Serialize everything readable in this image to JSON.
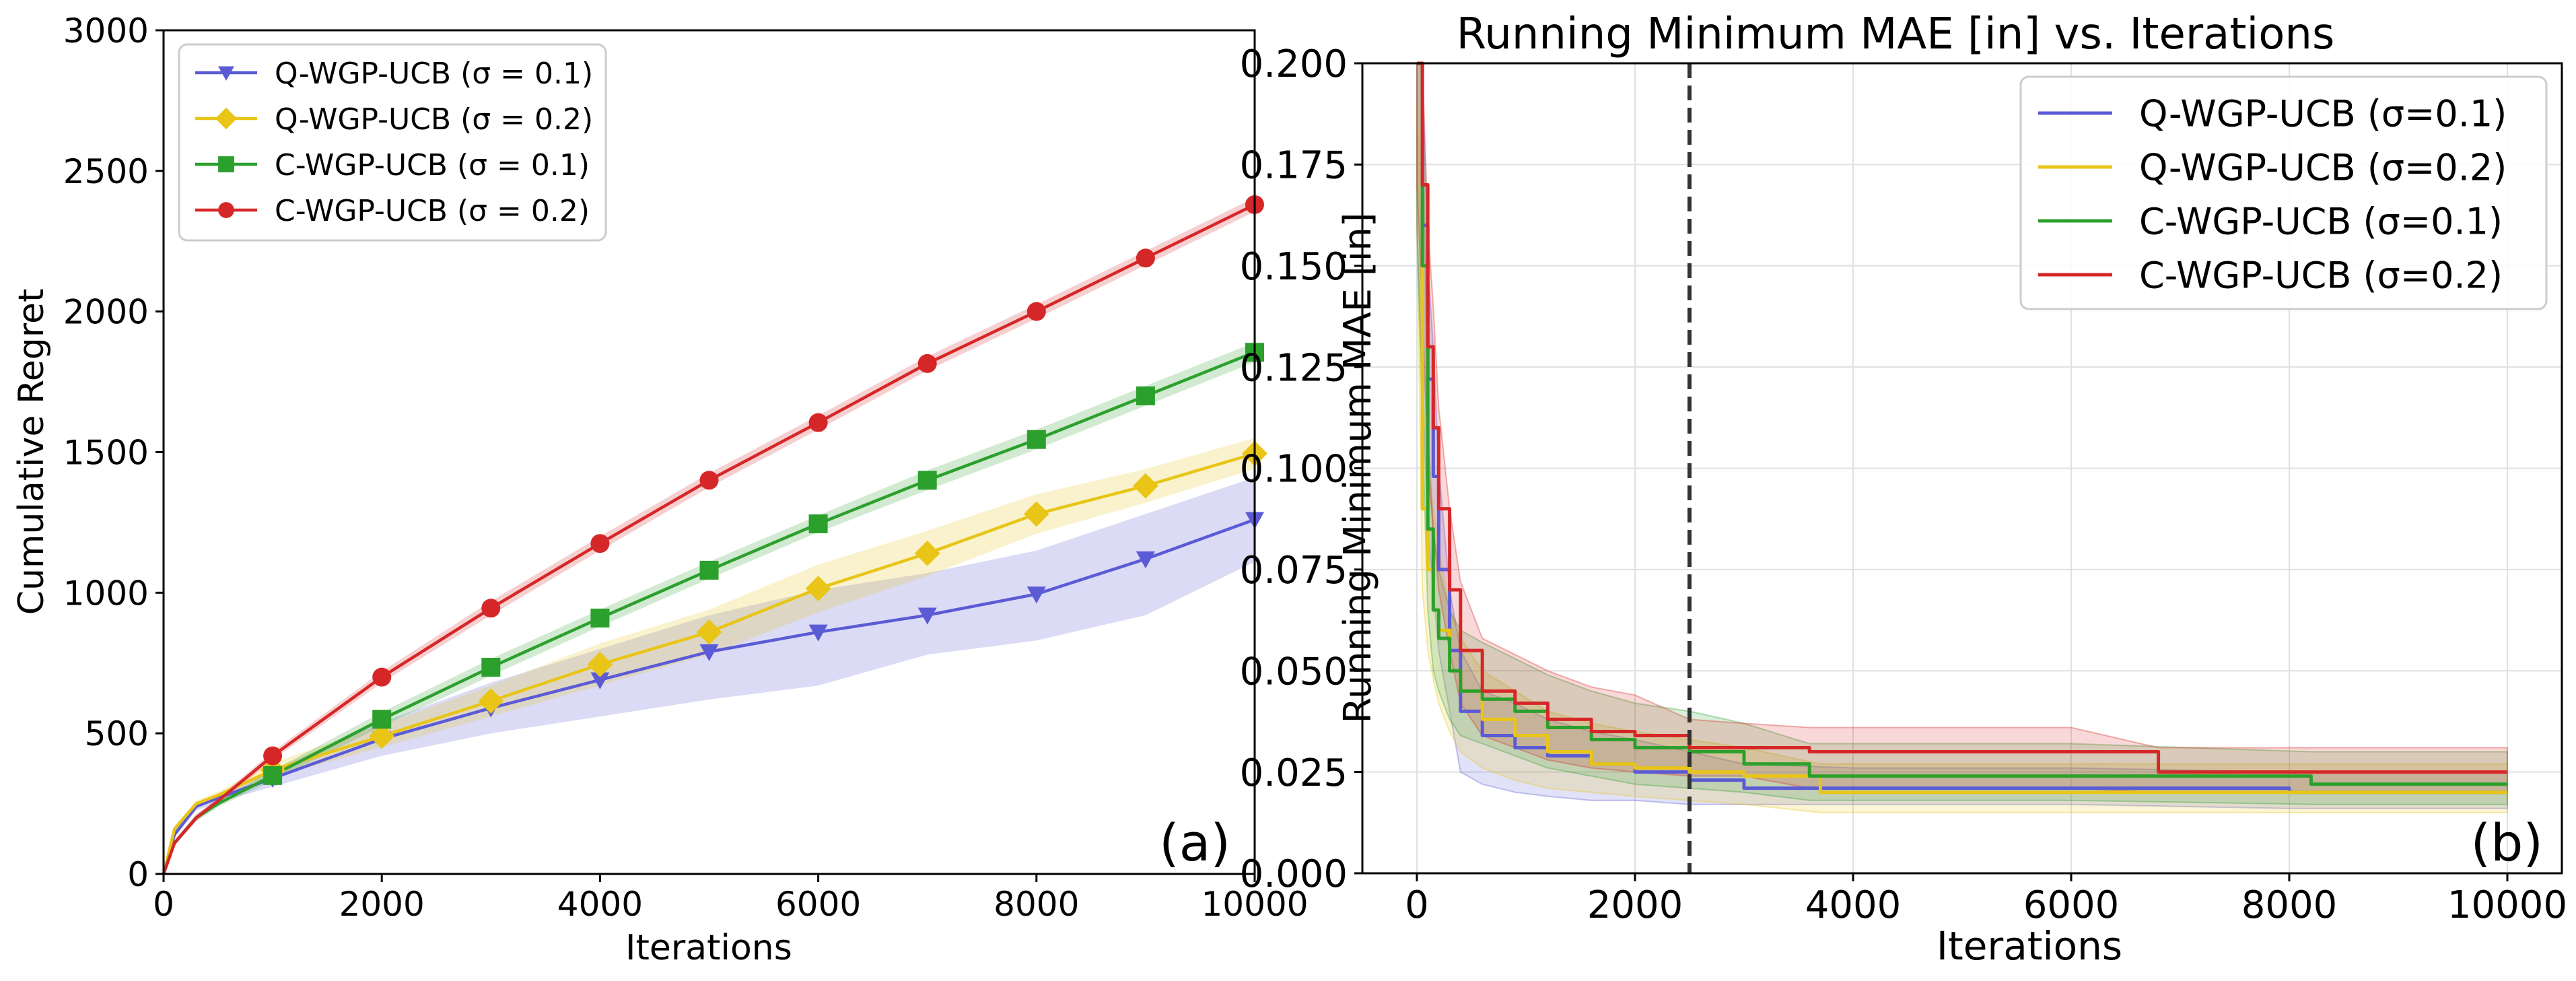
{
  "chart_data": [
    {
      "type": "line",
      "title": "",
      "xlabel": "Iterations",
      "ylabel": "Cumulative Regret",
      "xlim": [
        0,
        10000
      ],
      "ylim": [
        0,
        3000
      ],
      "xticks": [
        0,
        2000,
        4000,
        6000,
        8000,
        10000
      ],
      "xtick_labels": [
        "0",
        "2000",
        "4000",
        "6000",
        "8000",
        "10000"
      ],
      "yticks": [
        0,
        500,
        1000,
        1500,
        2000,
        2500,
        3000
      ],
      "ytick_labels": [
        "0",
        "500",
        "1000",
        "1500",
        "2000",
        "2500",
        "3000"
      ],
      "grid": false,
      "legend_position": "top-left",
      "panel_label": "(a)",
      "series": [
        {
          "name": "Q-WGP-UCB (σ = 0.1)",
          "color": "#5b5bd6",
          "marker": "triangle-down",
          "x": [
            0,
            100,
            300,
            500,
            1000,
            2000,
            3000,
            4000,
            5000,
            6000,
            7000,
            8000,
            9000,
            10000
          ],
          "y": [
            0,
            140,
            240,
            270,
            340,
            480,
            590,
            690,
            790,
            860,
            920,
            995,
            1120,
            1260
          ],
          "band_low": [
            0,
            130,
            225,
            255,
            310,
            420,
            500,
            560,
            620,
            670,
            780,
            830,
            920,
            1110
          ],
          "band_high": [
            0,
            150,
            255,
            285,
            370,
            540,
            680,
            800,
            920,
            1010,
            1070,
            1150,
            1280,
            1410
          ]
        },
        {
          "name": "Q-WGP-UCB (σ = 0.2)",
          "color": "#e8c517",
          "marker": "diamond",
          "x": [
            0,
            100,
            300,
            500,
            1000,
            2000,
            3000,
            4000,
            5000,
            6000,
            7000,
            8000,
            9000,
            10000
          ],
          "y": [
            0,
            160,
            250,
            280,
            370,
            490,
            615,
            745,
            860,
            1015,
            1140,
            1280,
            1380,
            1495
          ],
          "band_low": [
            0,
            150,
            238,
            268,
            345,
            450,
            560,
            670,
            780,
            930,
            1060,
            1210,
            1320,
            1440
          ],
          "band_high": [
            0,
            170,
            262,
            292,
            395,
            530,
            670,
            820,
            940,
            1100,
            1220,
            1350,
            1440,
            1550
          ]
        },
        {
          "name": "C-WGP-UCB (σ = 0.1)",
          "color": "#2ca02c",
          "marker": "square",
          "x": [
            0,
            100,
            300,
            500,
            1000,
            2000,
            3000,
            4000,
            5000,
            6000,
            7000,
            8000,
            9000,
            10000
          ],
          "y": [
            0,
            110,
            200,
            250,
            350,
            550,
            735,
            910,
            1080,
            1245,
            1400,
            1545,
            1700,
            1855
          ],
          "band_low": [
            0,
            100,
            188,
            238,
            332,
            525,
            705,
            880,
            1050,
            1215,
            1365,
            1510,
            1665,
            1820
          ],
          "band_high": [
            0,
            120,
            212,
            262,
            368,
            575,
            765,
            940,
            1110,
            1275,
            1435,
            1580,
            1735,
            1890
          ]
        },
        {
          "name": "C-WGP-UCB (σ = 0.2)",
          "color": "#d62728",
          "marker": "circle",
          "x": [
            0,
            100,
            300,
            500,
            1000,
            2000,
            3000,
            4000,
            5000,
            6000,
            7000,
            8000,
            9000,
            10000
          ],
          "y": [
            0,
            110,
            200,
            260,
            420,
            700,
            945,
            1175,
            1400,
            1605,
            1815,
            2000,
            2190,
            2380
          ],
          "band_low": [
            0,
            100,
            188,
            248,
            405,
            680,
            920,
            1150,
            1375,
            1580,
            1790,
            1975,
            2165,
            2355
          ],
          "band_high": [
            0,
            120,
            212,
            272,
            435,
            720,
            970,
            1200,
            1425,
            1630,
            1840,
            2025,
            2215,
            2405
          ]
        }
      ]
    },
    {
      "type": "line",
      "title": "Running Minimum MAE [in] vs. Iterations",
      "xlabel": "Iterations",
      "ylabel": "Running Minimum MAE [in]",
      "xlim": [
        -500,
        10500
      ],
      "ylim": [
        0,
        0.2
      ],
      "xticks": [
        0,
        2000,
        4000,
        6000,
        8000,
        10000
      ],
      "xtick_labels": [
        "0",
        "2000",
        "4000",
        "6000",
        "8000",
        "10000"
      ],
      "yticks": [
        0,
        0.025,
        0.05,
        0.075,
        0.1,
        0.125,
        0.15,
        0.175,
        0.2
      ],
      "ytick_labels": [
        "0.000",
        "0.025",
        "0.050",
        "0.075",
        "0.100",
        "0.125",
        "0.150",
        "0.175",
        "0.200"
      ],
      "grid": true,
      "legend_position": "top-right",
      "panel_label": "(b)",
      "vline_x": 2500,
      "series": [
        {
          "name": "Q-WGP-UCB (σ=0.1)",
          "color": "#5b5bd6",
          "x": [
            0,
            50,
            100,
            150,
            200,
            300,
            400,
            600,
            900,
            1200,
            1600,
            2000,
            2500,
            3000,
            4000,
            6000,
            8000,
            10000
          ],
          "y": [
            0.2,
            0.16,
            0.122,
            0.098,
            0.075,
            0.055,
            0.04,
            0.034,
            0.031,
            0.029,
            0.027,
            0.025,
            0.023,
            0.021,
            0.021,
            0.021,
            0.02,
            0.02
          ],
          "band_low": [
            0.16,
            0.12,
            0.085,
            0.07,
            0.055,
            0.04,
            0.025,
            0.022,
            0.02,
            0.019,
            0.018,
            0.018,
            0.017,
            0.017,
            0.017,
            0.017,
            0.016,
            0.016
          ],
          "band_high": [
            0.2,
            0.2,
            0.15,
            0.13,
            0.1,
            0.07,
            0.055,
            0.045,
            0.042,
            0.038,
            0.035,
            0.033,
            0.03,
            0.027,
            0.026,
            0.026,
            0.025,
            0.025
          ]
        },
        {
          "name": "Q-WGP-UCB (σ=0.2)",
          "color": "#e8c517",
          "x": [
            0,
            50,
            100,
            150,
            200,
            300,
            400,
            600,
            900,
            1200,
            1600,
            2000,
            2500,
            3000,
            3700,
            6000,
            8000,
            10000
          ],
          "y": [
            0.2,
            0.09,
            0.075,
            0.065,
            0.06,
            0.05,
            0.045,
            0.038,
            0.034,
            0.03,
            0.027,
            0.026,
            0.025,
            0.024,
            0.02,
            0.02,
            0.02,
            0.02
          ],
          "band_low": [
            0.16,
            0.07,
            0.055,
            0.048,
            0.042,
            0.035,
            0.03,
            0.026,
            0.023,
            0.021,
            0.02,
            0.019,
            0.018,
            0.017,
            0.015,
            0.015,
            0.015,
            0.015
          ],
          "band_high": [
            0.2,
            0.12,
            0.1,
            0.09,
            0.08,
            0.065,
            0.058,
            0.05,
            0.045,
            0.04,
            0.037,
            0.035,
            0.033,
            0.031,
            0.027,
            0.027,
            0.027,
            0.027
          ]
        },
        {
          "name": "C-WGP-UCB (σ=0.1)",
          "color": "#2ca02c",
          "x": [
            0,
            50,
            100,
            150,
            200,
            300,
            400,
            600,
            900,
            1200,
            1600,
            2000,
            2500,
            3000,
            3600,
            6000,
            8200,
            10000
          ],
          "y": [
            0.2,
            0.15,
            0.085,
            0.065,
            0.058,
            0.05,
            0.045,
            0.043,
            0.04,
            0.036,
            0.033,
            0.031,
            0.03,
            0.027,
            0.024,
            0.024,
            0.022,
            0.022
          ],
          "band_low": [
            0.16,
            0.11,
            0.065,
            0.05,
            0.045,
            0.038,
            0.034,
            0.032,
            0.029,
            0.026,
            0.024,
            0.022,
            0.021,
            0.02,
            0.018,
            0.018,
            0.017,
            0.017
          ],
          "band_high": [
            0.2,
            0.2,
            0.11,
            0.085,
            0.075,
            0.065,
            0.06,
            0.057,
            0.053,
            0.049,
            0.045,
            0.042,
            0.04,
            0.037,
            0.032,
            0.032,
            0.03,
            0.03
          ]
        },
        {
          "name": "C-WGP-UCB (σ=0.2)",
          "color": "#d62728",
          "x": [
            0,
            50,
            100,
            150,
            200,
            300,
            400,
            600,
            900,
            1200,
            1600,
            2000,
            2500,
            3000,
            3600,
            6000,
            6800,
            10000
          ],
          "y": [
            0.2,
            0.17,
            0.13,
            0.11,
            0.09,
            0.07,
            0.055,
            0.045,
            0.042,
            0.038,
            0.035,
            0.034,
            0.031,
            0.031,
            0.03,
            0.03,
            0.025,
            0.025
          ],
          "band_low": [
            0.17,
            0.14,
            0.1,
            0.085,
            0.07,
            0.055,
            0.042,
            0.034,
            0.031,
            0.028,
            0.026,
            0.025,
            0.024,
            0.024,
            0.021,
            0.021,
            0.02,
            0.02
          ],
          "band_high": [
            0.2,
            0.2,
            0.16,
            0.14,
            0.115,
            0.09,
            0.072,
            0.058,
            0.054,
            0.05,
            0.046,
            0.044,
            0.038,
            0.037,
            0.036,
            0.036,
            0.031,
            0.031
          ]
        }
      ]
    }
  ]
}
